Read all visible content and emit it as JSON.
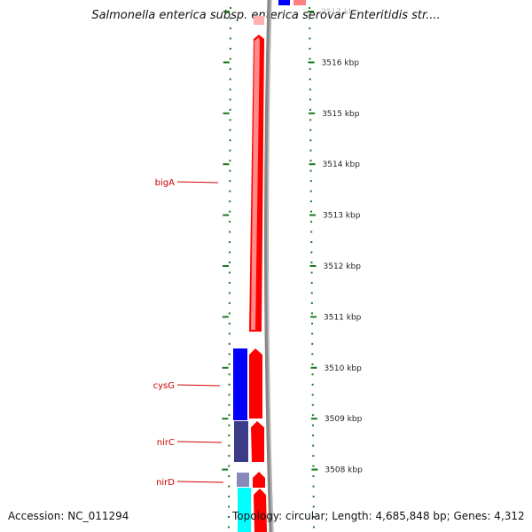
{
  "title": "Salmonella enterica subsp. enterica serovar Enteritidis str....",
  "footer": {
    "accession": "Accession: NC_011294",
    "summary": "Topology: circular; Length: 4,685,848 bp; Genes: 4,312"
  },
  "scale": {
    "unit": "kbp",
    "ticks": [
      {
        "label": "3517 kbp",
        "kbp": 3517
      },
      {
        "label": "3516 kbp",
        "kbp": 3516
      },
      {
        "label": "3515 kbp",
        "kbp": 3515
      },
      {
        "label": "3514 kbp",
        "kbp": 3514
      },
      {
        "label": "3513 kbp",
        "kbp": 3513
      },
      {
        "label": "3512 kbp",
        "kbp": 3512
      },
      {
        "label": "3511 kbp",
        "kbp": 3511
      },
      {
        "label": "3510 kbp",
        "kbp": 3510
      },
      {
        "label": "3509 kbp",
        "kbp": 3509
      },
      {
        "label": "3508 kbp",
        "kbp": 3508
      }
    ]
  },
  "genes": [
    {
      "name": "bigA",
      "color": "#cc0000"
    },
    {
      "name": "cysG",
      "color": "#cc0000"
    },
    {
      "name": "nirC",
      "color": "#cc0000"
    },
    {
      "name": "nirD",
      "color": "#cc0000"
    }
  ],
  "colors": {
    "cds": "#ff0000",
    "tick": "#1a7a1a",
    "backbone": "#888888",
    "blast_blue": "#0000ff",
    "blast_navy": "#3b3b8a",
    "blast_cyan": "#00ffff"
  }
}
